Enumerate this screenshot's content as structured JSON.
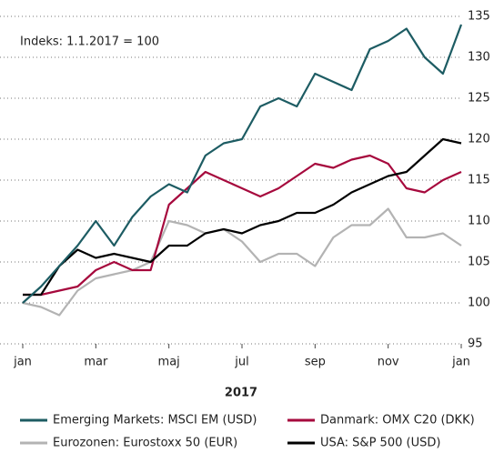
{
  "chart_data": {
    "type": "line",
    "annotation": "Indeks: 1.1.2017 = 100",
    "x_label": "2017",
    "categories": [
      "jan",
      null,
      null,
      null,
      "mar",
      null,
      null,
      null,
      "maj",
      null,
      null,
      null,
      "jul",
      null,
      null,
      null,
      "sep",
      null,
      null,
      null,
      "nov",
      null,
      null,
      null,
      "jan"
    ],
    "series": [
      {
        "name": "Emerging Markets: MSCI EM (USD)",
        "color": "#1d5c63",
        "values": [
          100,
          102,
          104.5,
          107,
          110,
          107,
          110.5,
          113,
          114.5,
          113.5,
          118,
          119.5,
          120,
          124,
          125,
          124,
          128,
          127,
          126,
          131,
          132,
          133.5,
          130,
          128,
          134
        ]
      },
      {
        "name": "Danmark: OMX C20 (DKK)",
        "color": "#a6093d",
        "values": [
          101,
          101,
          101.5,
          102,
          104,
          105,
          104,
          104,
          112,
          114,
          116,
          115,
          114,
          113,
          114,
          115.5,
          117,
          116.5,
          117.5,
          118,
          117,
          114,
          113.5,
          115,
          116
        ]
      },
      {
        "name": "Eurozonen: Eurostoxx 50 (EUR)",
        "color": "#b3b3b3",
        "values": [
          100,
          99.5,
          98.5,
          101.5,
          103,
          103.5,
          104,
          105,
          110,
          109.5,
          108.5,
          109,
          107.5,
          105,
          106,
          106,
          104.5,
          108,
          109.5,
          109.5,
          111.5,
          108,
          108,
          108.5,
          107
        ]
      },
      {
        "name": "USA: S&P 500 (USD)",
        "color": "#000000",
        "values": [
          101,
          101,
          104.5,
          106.5,
          105.5,
          106,
          105.5,
          105,
          107,
          107,
          108.5,
          109,
          108.5,
          109.5,
          110,
          111,
          111,
          112,
          113.5,
          114.5,
          115.5,
          116,
          118,
          120,
          119.5
        ]
      }
    ],
    "ylim": [
      95,
      135
    ],
    "yticks": [
      95,
      100,
      105,
      110,
      115,
      120,
      125,
      130,
      135
    ],
    "grid": true
  }
}
